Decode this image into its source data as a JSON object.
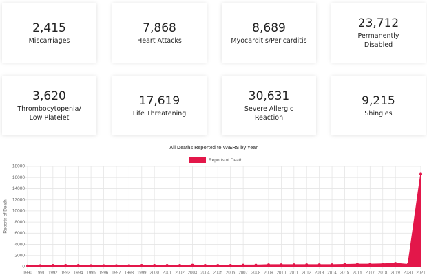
{
  "cards": [
    {
      "value": "2,415",
      "label": [
        "Miscarriages"
      ]
    },
    {
      "value": "7,868",
      "label": [
        "Heart Attacks"
      ]
    },
    {
      "value": "8,689",
      "label": [
        "Myocarditis/Pericarditis"
      ]
    },
    {
      "value": "23,712",
      "label": [
        "Permanently",
        "Disabled"
      ]
    },
    {
      "value": "3,620",
      "label": [
        "Thrombocytopenia/",
        "Low Platelet"
      ]
    },
    {
      "value": "17,619",
      "label": [
        "Life Threatening"
      ]
    },
    {
      "value": "30,631",
      "label": [
        "Severe Allergic",
        "Reaction"
      ]
    },
    {
      "value": "9,215",
      "label": [
        "Shingles"
      ]
    }
  ],
  "chart_data": {
    "type": "area",
    "title": "All Deaths Reported to VAERS by Year",
    "y_label": "Reports of Death",
    "categories": [
      "1990",
      "1991",
      "1992",
      "1993",
      "1994",
      "1995",
      "1996",
      "1997",
      "1998",
      "1999",
      "2000",
      "2001",
      "2002",
      "2003",
      "2004",
      "2005",
      "2006",
      "2007",
      "2008",
      "2009",
      "2010",
      "2011",
      "2012",
      "2013",
      "2014",
      "2015",
      "2016",
      "2017",
      "2018",
      "2019",
      "2020",
      "2021"
    ],
    "series": [
      {
        "name": "Reports of Death",
        "color": "#e3174a",
        "values": [
          150,
          200,
          250,
          250,
          250,
          200,
          200,
          200,
          200,
          250,
          250,
          250,
          250,
          300,
          250,
          250,
          250,
          300,
          300,
          350,
          350,
          350,
          350,
          350,
          350,
          400,
          450,
          450,
          500,
          600,
          400,
          16600
        ]
      }
    ],
    "ylim": [
      0,
      18000
    ],
    "yticks": [
      0,
      2000,
      4000,
      6000,
      8000,
      10000,
      12000,
      14000,
      16000,
      18000
    ],
    "grid": true,
    "legend": "top"
  }
}
